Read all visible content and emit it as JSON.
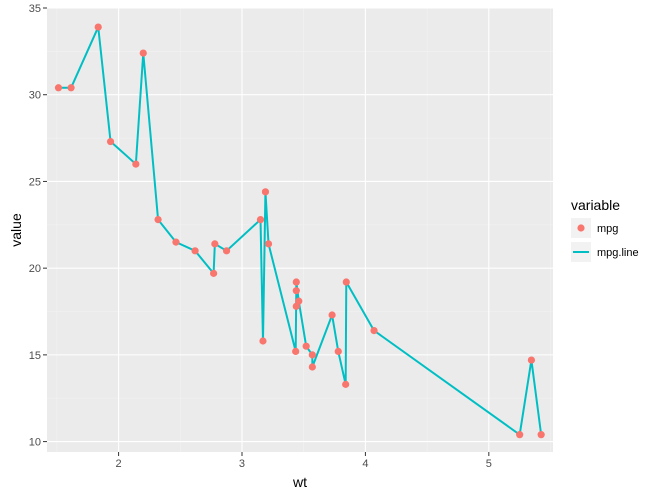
{
  "chart_data": {
    "type": "scatter",
    "xlabel": "wt",
    "ylabel": "value",
    "xlim": [
      1.42,
      5.52
    ],
    "ylim": [
      9.4,
      35
    ],
    "x_ticks": [
      2,
      3,
      4,
      5
    ],
    "y_ticks": [
      10,
      15,
      20,
      25,
      30,
      35
    ],
    "x_tick_labels": [
      "2",
      "3",
      "4",
      "5"
    ],
    "y_tick_labels": [
      "10",
      "15",
      "20",
      "25",
      "30",
      "35"
    ],
    "grid": true,
    "legend": {
      "title": "variable",
      "position": "right",
      "entries": [
        {
          "label": "mpg",
          "kind": "point",
          "color": "#F8766D"
        },
        {
          "label": "mpg.line",
          "kind": "line",
          "color": "#00BFC4"
        }
      ]
    },
    "colors": {
      "panel_background": "#EBEBEB",
      "grid_major": "#FFFFFF",
      "grid_minor": "#F2F2F2",
      "point": "#F8766D",
      "line": "#00BFC4"
    },
    "series": [
      {
        "name": "mpg",
        "kind": "point",
        "points": [
          [
            1.513,
            30.4
          ],
          [
            1.615,
            30.4
          ],
          [
            1.835,
            33.9
          ],
          [
            1.935,
            27.3
          ],
          [
            2.14,
            26.0
          ],
          [
            2.2,
            32.4
          ],
          [
            2.32,
            22.8
          ],
          [
            2.465,
            21.5
          ],
          [
            2.62,
            21.0
          ],
          [
            2.77,
            19.7
          ],
          [
            2.78,
            21.4
          ],
          [
            2.875,
            21.0
          ],
          [
            3.15,
            22.8
          ],
          [
            3.17,
            15.8
          ],
          [
            3.19,
            24.4
          ],
          [
            3.215,
            21.4
          ],
          [
            3.435,
            15.2
          ],
          [
            3.44,
            18.7
          ],
          [
            3.44,
            17.8
          ],
          [
            3.44,
            19.2
          ],
          [
            3.46,
            18.1
          ],
          [
            3.52,
            15.5
          ],
          [
            3.57,
            15.0
          ],
          [
            3.57,
            14.3
          ],
          [
            3.73,
            17.3
          ],
          [
            3.78,
            15.2
          ],
          [
            3.84,
            13.3
          ],
          [
            3.845,
            19.2
          ],
          [
            4.07,
            16.4
          ],
          [
            5.25,
            10.4
          ],
          [
            5.345,
            14.7
          ],
          [
            5.424,
            10.4
          ]
        ]
      },
      {
        "name": "mpg.line",
        "kind": "line",
        "points": [
          [
            1.513,
            30.4
          ],
          [
            1.615,
            30.4
          ],
          [
            1.835,
            33.9
          ],
          [
            1.935,
            27.3
          ],
          [
            2.14,
            26.0
          ],
          [
            2.2,
            32.4
          ],
          [
            2.32,
            22.8
          ],
          [
            2.465,
            21.5
          ],
          [
            2.62,
            21.0
          ],
          [
            2.77,
            19.7
          ],
          [
            2.78,
            21.4
          ],
          [
            2.875,
            21.0
          ],
          [
            3.15,
            22.8
          ],
          [
            3.17,
            15.8
          ],
          [
            3.19,
            24.4
          ],
          [
            3.215,
            21.4
          ],
          [
            3.435,
            15.2
          ],
          [
            3.44,
            18.7
          ],
          [
            3.44,
            17.8
          ],
          [
            3.44,
            19.2
          ],
          [
            3.46,
            18.1
          ],
          [
            3.52,
            15.5
          ],
          [
            3.57,
            15.0
          ],
          [
            3.57,
            14.3
          ],
          [
            3.73,
            17.3
          ],
          [
            3.78,
            15.2
          ],
          [
            3.84,
            13.3
          ],
          [
            3.845,
            19.2
          ],
          [
            4.07,
            16.4
          ],
          [
            5.25,
            10.4
          ],
          [
            5.345,
            14.7
          ],
          [
            5.424,
            10.4
          ]
        ]
      }
    ]
  }
}
